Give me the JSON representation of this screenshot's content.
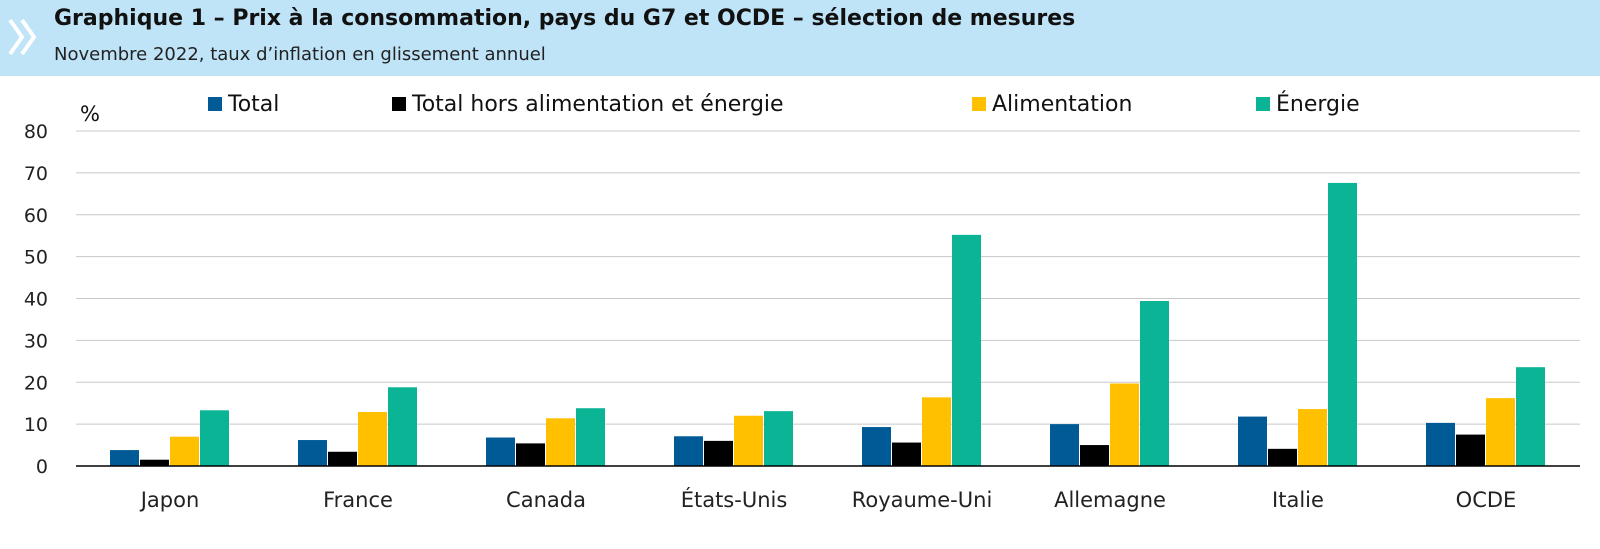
{
  "header": {
    "title": "Graphique 1 – Prix à la consommation, pays du G7 et OCDE – sélection de mesures",
    "subtitle": "Novembre 2022, taux d’inflation en glissement annuel"
  },
  "chart_data": {
    "type": "bar",
    "unit_label": "%",
    "categories": [
      "Japon",
      "France",
      "Canada",
      "États-Unis",
      "Royaume-Uni",
      "Allemagne",
      "Italie",
      "OCDE"
    ],
    "series": [
      {
        "name": "Total",
        "color": "#005a96",
        "values": [
          3.8,
          6.2,
          6.8,
          7.1,
          9.3,
          10.0,
          11.8,
          10.3
        ]
      },
      {
        "name": "Total hors alimentation et énergie",
        "color": "#000000",
        "values": [
          1.5,
          3.4,
          5.4,
          6.0,
          5.6,
          5.0,
          4.1,
          7.5
        ]
      },
      {
        "name": "Alimentation",
        "color": "#ffc000",
        "values": [
          7.0,
          12.9,
          11.4,
          12.0,
          16.4,
          19.7,
          13.6,
          16.2
        ]
      },
      {
        "name": "Énergie",
        "color": "#0cb496",
        "values": [
          13.3,
          18.8,
          13.8,
          13.1,
          55.2,
          39.4,
          67.6,
          23.6
        ]
      }
    ],
    "ylim": [
      0,
      80
    ],
    "yticks": [
      0,
      10,
      20,
      30,
      40,
      50,
      60,
      70,
      80
    ],
    "grid": true,
    "legend_position": "top"
  }
}
